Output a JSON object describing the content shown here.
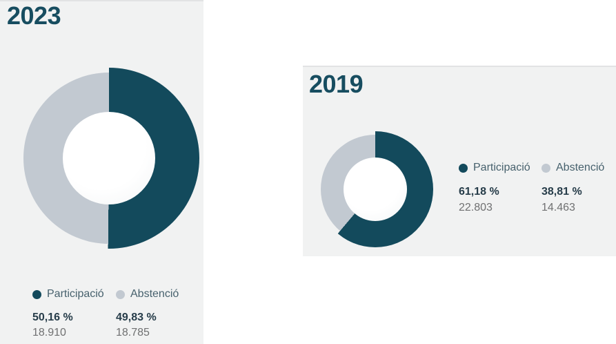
{
  "colors": {
    "participacio": "#134a5c",
    "abstencio": "#c2c9d1",
    "panel_background": "#f1f2f2",
    "title_text": "#174d60",
    "legend_label_text": "#47616d",
    "percent_text": "#263c49",
    "count_text": "#6f7071",
    "hole": "#ffffff"
  },
  "chart_data": [
    {
      "type": "pie",
      "variant": "donut",
      "title": "2023",
      "legend_position": "bottom",
      "start_angle_deg": 0,
      "direction": "clockwise",
      "labels": [
        "Participació",
        "Abstenció"
      ],
      "values_percent": [
        50.16,
        49.83
      ],
      "percent_labels": [
        "50,16 %",
        "49,83 %"
      ],
      "counts": [
        18910,
        18785
      ],
      "count_labels": [
        "18.910",
        "18.785"
      ],
      "colors": [
        "#134a5c",
        "#c2c9d1"
      ]
    },
    {
      "type": "pie",
      "variant": "donut",
      "title": "2019",
      "legend_position": "right",
      "start_angle_deg": 0,
      "direction": "clockwise",
      "labels": [
        "Participació",
        "Abstenció"
      ],
      "values_percent": [
        61.18,
        38.81
      ],
      "percent_labels": [
        "61,18 %",
        "38,81 %"
      ],
      "counts": [
        22803,
        14463
      ],
      "count_labels": [
        "22.803",
        "14.463"
      ],
      "colors": [
        "#134a5c",
        "#c2c9d1"
      ]
    }
  ]
}
